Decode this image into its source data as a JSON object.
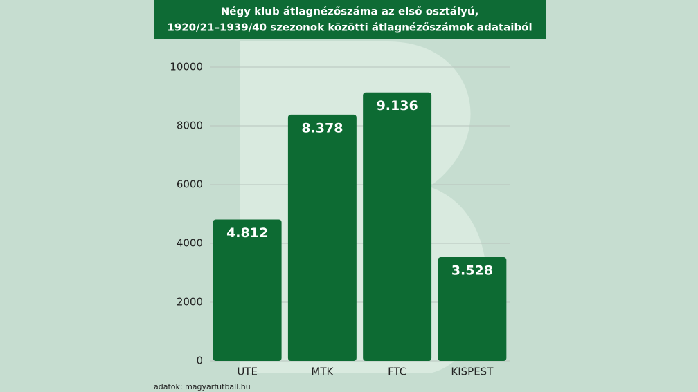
{
  "chart_data": {
    "type": "bar",
    "title": [
      "Négy klub átlagnézőszáma az első osztályú,",
      "1920/21–1939/40 szezonok közötti átlagnézőszámok adataiból"
    ],
    "categories": [
      "UTE",
      "MTK",
      "FTC",
      "KISPEST"
    ],
    "values": [
      4812,
      8378,
      9136,
      3528
    ],
    "value_labels": [
      "4.812",
      "8.378",
      "9.136",
      "3.528"
    ],
    "color": "#0d6b33",
    "ylim": [
      0,
      10000
    ],
    "yticks": [
      0,
      2000,
      4000,
      6000,
      8000,
      10000
    ],
    "grid": true,
    "source": "adatok: magyarfutball.hu"
  }
}
